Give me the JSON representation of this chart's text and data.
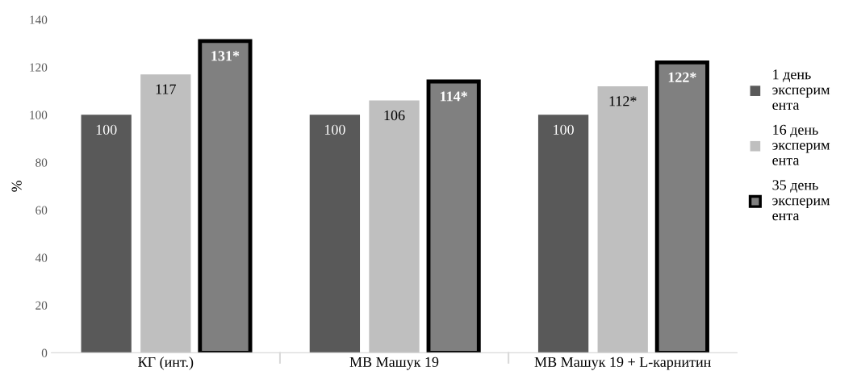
{
  "chart_data": {
    "type": "bar",
    "ylabel": "%",
    "categories": [
      "КГ (инт.)",
      "МВ Машук 19",
      "МВ Машук 19 + L-карнитин"
    ],
    "series": [
      {
        "name": "1 день\nэксперим\nента",
        "color": "#595959",
        "values": [
          100,
          100,
          100
        ],
        "value_labels": [
          "100",
          "100",
          "100"
        ]
      },
      {
        "name": "16 день\nэксперим\nента",
        "color": "#bfbfbf",
        "values": [
          117,
          106,
          112
        ],
        "value_labels": [
          "117",
          "106",
          "112*"
        ]
      },
      {
        "name": "35 день\nэксперим\nента",
        "color": "#808080",
        "values": [
          131,
          114,
          122
        ],
        "value_labels": [
          "131*",
          "114*",
          "122*"
        ]
      }
    ],
    "ylim": [
      0,
      140
    ],
    "yticks": [
      0,
      20,
      40,
      60,
      80,
      100,
      120,
      140
    ],
    "grid": false,
    "legend": "right"
  }
}
